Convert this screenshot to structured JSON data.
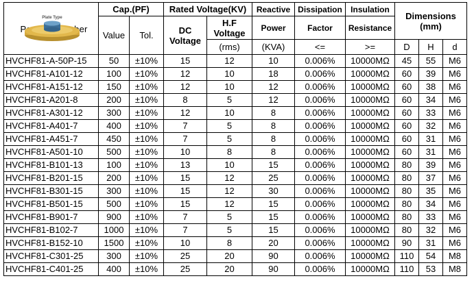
{
  "header": {
    "part_number": [
      "Part",
      "Number"
    ],
    "plate_type": "Plate Type",
    "cap": "Cap.(PF)",
    "rated_voltage": "Rated Voltage(KV)",
    "reactive": "Reactive",
    "dissipation": "Dissipation",
    "insulation": "Insulation",
    "dimensions": "Dimensions",
    "dimensions_unit": "(mm)",
    "value": "Value",
    "tol": "Tol.",
    "dc": "DC",
    "dc_voltage": "Voltage",
    "hf": "H.F",
    "hf_voltage": "Voltage",
    "power": "Power",
    "factor": "Factor",
    "resistance": "Resistance",
    "rms": "(rms)",
    "kva": "(KVA)",
    "le": "<=",
    "ge": ">=",
    "d_upper": "D",
    "h_upper": "H",
    "d_lower": "d"
  },
  "colors": {
    "capacitor_body": "#e2b84c",
    "capacitor_electrode": "#4a7fa8",
    "grid": "#000000"
  },
  "rows": [
    {
      "part": "HVCHF81-A-50P-15",
      "value": "50",
      "tol": "±10%",
      "dc": "15",
      "hf": "12",
      "power": "10",
      "df": "0.006%",
      "ir": "10000MΩ",
      "D": "45",
      "H": "55",
      "d": "M6"
    },
    {
      "part": "HVCHF81-A101-12",
      "value": "100",
      "tol": "±10%",
      "dc": "12",
      "hf": "10",
      "power": "18",
      "df": "0.006%",
      "ir": "10000MΩ",
      "D": "60",
      "H": "39",
      "d": "M6"
    },
    {
      "part": "HVCHF81-A151-12",
      "value": "150",
      "tol": "±10%",
      "dc": "12",
      "hf": "10",
      "power": "12",
      "df": "0.006%",
      "ir": "10000MΩ",
      "D": "60",
      "H": "38",
      "d": "M6"
    },
    {
      "part": "HVCHF81-A201-8",
      "value": "200",
      "tol": "±10%",
      "dc": "8",
      "hf": "5",
      "power": "12",
      "df": "0.006%",
      "ir": "10000MΩ",
      "D": "60",
      "H": "34",
      "d": "M6"
    },
    {
      "part": "HVCHF81-A301-12",
      "value": "300",
      "tol": "±10%",
      "dc": "12",
      "hf": "10",
      "power": "8",
      "df": "0.006%",
      "ir": "10000MΩ",
      "D": "60",
      "H": "33",
      "d": "M6"
    },
    {
      "part": "HVCHF81-A401-7",
      "value": "400",
      "tol": "±10%",
      "dc": "7",
      "hf": "5",
      "power": "8",
      "df": "0.006%",
      "ir": "10000MΩ",
      "D": "60",
      "H": "32",
      "d": "M6"
    },
    {
      "part": "HVCHF81-A451-7",
      "value": "450",
      "tol": "±10%",
      "dc": "7",
      "hf": "5",
      "power": "8",
      "df": "0.006%",
      "ir": "10000MΩ",
      "D": "60",
      "H": "31",
      "d": "M6"
    },
    {
      "part": "HVCHF81-A501-10",
      "value": "500",
      "tol": "±10%",
      "dc": "10",
      "hf": "8",
      "power": "8",
      "df": "0.006%",
      "ir": "10000MΩ",
      "D": "60",
      "H": "31",
      "d": "M6"
    },
    {
      "part": "HVCHF81-B101-13",
      "value": "100",
      "tol": "±10%",
      "dc": "13",
      "hf": "10",
      "power": "15",
      "df": "0.006%",
      "ir": "10000MΩ",
      "D": "80",
      "H": "39",
      "d": "M6"
    },
    {
      "part": "HVCHF81-B201-15",
      "value": "200",
      "tol": "±10%",
      "dc": "15",
      "hf": "12",
      "power": "25",
      "df": "0.006%",
      "ir": "10000MΩ",
      "D": "80",
      "H": "37",
      "d": "M6"
    },
    {
      "part": "HVCHF81-B301-15",
      "value": "300",
      "tol": "±10%",
      "dc": "15",
      "hf": "12",
      "power": "30",
      "df": "0.006%",
      "ir": "10000MΩ",
      "D": "80",
      "H": "35",
      "d": "M6"
    },
    {
      "part": "HVCHF81-B501-15",
      "value": "500",
      "tol": "±10%",
      "dc": "15",
      "hf": "12",
      "power": "15",
      "df": "0.006%",
      "ir": "10000MΩ",
      "D": "80",
      "H": "34",
      "d": "M6"
    },
    {
      "part": "HVCHF81-B901-7",
      "value": "900",
      "tol": "±10%",
      "dc": "7",
      "hf": "5",
      "power": "15",
      "df": "0.006%",
      "ir": "10000MΩ",
      "D": "80",
      "H": "33",
      "d": "M6"
    },
    {
      "part": "HVCHF81-B102-7",
      "value": "1000",
      "tol": "±10%",
      "dc": "7",
      "hf": "5",
      "power": "15",
      "df": "0.006%",
      "ir": "10000MΩ",
      "D": "80",
      "H": "32",
      "d": "M6"
    },
    {
      "part": "HVCHF81-B152-10",
      "value": "1500",
      "tol": "±10%",
      "dc": "10",
      "hf": "8",
      "power": "20",
      "df": "0.006%",
      "ir": "10000MΩ",
      "D": "90",
      "H": "31",
      "d": "M6"
    },
    {
      "part": "HVCHF81-C301-25",
      "value": "300",
      "tol": "±10%",
      "dc": "25",
      "hf": "20",
      "power": "90",
      "df": "0.006%",
      "ir": "10000MΩ",
      "D": "110",
      "H": "54",
      "d": "M8"
    },
    {
      "part": "HVCHF81-C401-25",
      "value": "400",
      "tol": "±10%",
      "dc": "25",
      "hf": "20",
      "power": "90",
      "df": "0.006%",
      "ir": "10000MΩ",
      "D": "110",
      "H": "53",
      "d": "M8"
    }
  ]
}
